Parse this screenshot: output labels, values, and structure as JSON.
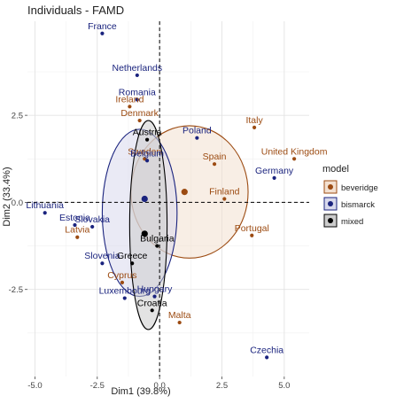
{
  "chart_data": {
    "type": "scatter",
    "title": "Individuals - FAMD",
    "xlabel": "Dim1 (39.8%)",
    "ylabel": "Dim2 (33.4%)",
    "xlim": [
      -5.3,
      6.0
    ],
    "ylim": [
      -5.0,
      5.2
    ],
    "x_ticks": [
      -5.0,
      -2.5,
      0.0,
      2.5,
      5.0
    ],
    "x_tick_labels": [
      "-5.0",
      "-2.5",
      "0.0",
      "2.5",
      "5.0"
    ],
    "y_ticks": [
      2.5,
      0.0,
      -2.5
    ],
    "y_tick_labels": [
      "2.5",
      "0.0",
      "-2.5"
    ],
    "grid": true,
    "background": "#ffffff",
    "legend": {
      "title": "model",
      "placement": "right"
    },
    "series": [
      {
        "name": "beveridge",
        "color": "#9c4b12",
        "fill": "#f3e0d0",
        "points": [
          {
            "label": "Ireland",
            "x": -1.2,
            "y": 2.75
          },
          {
            "label": "Denmark",
            "x": -0.8,
            "y": 2.35
          },
          {
            "label": "Italy",
            "x": 3.8,
            "y": 2.15
          },
          {
            "label": "United Kingdom",
            "x": 5.4,
            "y": 1.25
          },
          {
            "label": "Spain",
            "x": 2.2,
            "y": 1.1
          },
          {
            "label": "Sweden",
            "x": -0.6,
            "y": 1.25
          },
          {
            "label": "Finland",
            "x": 2.6,
            "y": 0.1
          },
          {
            "label": "Portugal",
            "x": 3.7,
            "y": -0.95
          },
          {
            "label": "Latvia",
            "x": -3.3,
            "y": -1.0
          },
          {
            "label": "Cyprus",
            "x": -1.5,
            "y": -2.3
          },
          {
            "label": "Malta",
            "x": 0.8,
            "y": -3.45
          }
        ],
        "centroid": {
          "x": 1.0,
          "y": 0.3
        },
        "ellipse": {
          "cx": 1.2,
          "cy": 0.3,
          "rx": 2.35,
          "ry": 1.9,
          "angle": 0
        }
      },
      {
        "name": "bismarck",
        "color": "#1a237e",
        "fill": "#d8d9ec",
        "points": [
          {
            "label": "France",
            "x": -2.3,
            "y": 4.85
          },
          {
            "label": "Netherlands",
            "x": -0.9,
            "y": 3.65
          },
          {
            "label": "Romania",
            "x": -0.9,
            "y": 2.95
          },
          {
            "label": "Poland",
            "x": 1.5,
            "y": 1.85
          },
          {
            "label": "Belgium",
            "x": -0.5,
            "y": 1.2
          },
          {
            "label": "Germany",
            "x": 4.6,
            "y": 0.7
          },
          {
            "label": "Lithuania",
            "x": -4.6,
            "y": -0.3
          },
          {
            "label": "Estonia",
            "x": -3.4,
            "y": -0.65
          },
          {
            "label": "Slovakia",
            "x": -2.7,
            "y": -0.7
          },
          {
            "label": "Slovenia",
            "x": -2.3,
            "y": -1.75
          },
          {
            "label": "Luxembourg",
            "x": -1.4,
            "y": -2.75
          },
          {
            "label": "Hungary",
            "x": -0.2,
            "y": -2.7
          },
          {
            "label": "Czechia",
            "x": 4.3,
            "y": -4.45
          }
        ],
        "centroid": {
          "x": -0.6,
          "y": 0.1
        },
        "ellipse": {
          "cx": -0.8,
          "cy": -0.3,
          "rx": 1.5,
          "ry": 2.4,
          "angle": 0
        }
      },
      {
        "name": "mixed",
        "color": "#000000",
        "fill": "#cccccc",
        "points": [
          {
            "label": "Austria",
            "x": -0.5,
            "y": 1.8
          },
          {
            "label": "Bulgaria",
            "x": -0.1,
            "y": -1.25
          },
          {
            "label": "Greece",
            "x": -1.1,
            "y": -1.75
          },
          {
            "label": "Croatia",
            "x": -0.3,
            "y": -3.1
          }
        ],
        "centroid": {
          "x": -0.6,
          "y": -0.9
        },
        "ellipse": {
          "cx": -0.45,
          "cy": -0.65,
          "rx": 0.75,
          "ry": 3.0,
          "angle": 0
        }
      }
    ]
  }
}
